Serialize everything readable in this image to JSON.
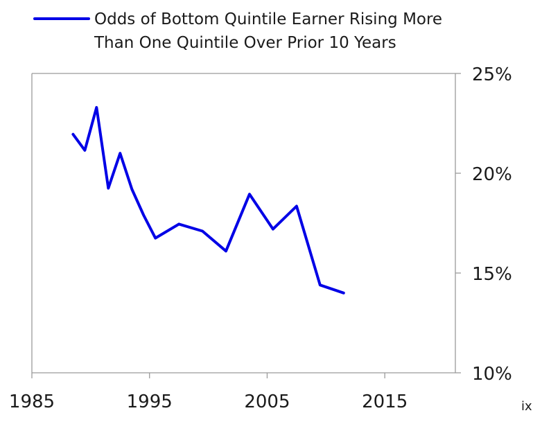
{
  "chart_data": {
    "type": "line",
    "title": "",
    "xlabel": "",
    "ylabel": "",
    "xlim": [
      1985,
      2021
    ],
    "ylim": [
      10,
      25
    ],
    "y_axis_side": "right",
    "grid": false,
    "legend_position": "top-left",
    "x_ticks": [
      1985,
      1995,
      2005,
      2015
    ],
    "x_tick_labels": [
      "1985",
      "1995",
      "2005",
      "2015"
    ],
    "y_ticks": [
      10,
      15,
      20,
      25
    ],
    "y_tick_labels": [
      "10%",
      "15%",
      "20%",
      "25%"
    ],
    "series": [
      {
        "name": "Odds of Bottom Quintile Earner Rising More Than One Quintile Over Prior 10 Years",
        "legend_lines": [
          "Odds of Bottom Quintile Earner Rising More",
          "Than One Quintile Over Prior 10 Years"
        ],
        "color": "#0000e6",
        "x": [
          1988.5,
          1989.5,
          1990.5,
          1991.5,
          1992.5,
          1993.5,
          1994.5,
          1995.5,
          1997.5,
          1999.5,
          2001.5,
          2003.5,
          2005.5,
          2007.5,
          2009.5,
          2011.5
        ],
        "y": [
          21.95,
          21.15,
          23.3,
          19.25,
          21.0,
          19.2,
          17.9,
          16.75,
          17.45,
          17.1,
          16.1,
          18.95,
          17.2,
          18.35,
          14.4,
          14.0
        ]
      }
    ],
    "footnote": "ix"
  }
}
